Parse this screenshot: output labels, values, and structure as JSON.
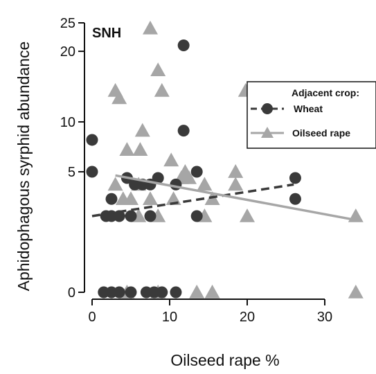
{
  "chart_data": {
    "type": "scatter",
    "panel_label": "SNH",
    "xlabel": "Oilseed rape %",
    "ylabel": "Aphidophagous syrphid abundance",
    "xlim": [
      -1,
      35
    ],
    "y_scale": "sqrt",
    "ylim": [
      0,
      25
    ],
    "x_ticks": [
      0,
      10,
      20,
      30
    ],
    "y_ticks": [
      0,
      5,
      10,
      20,
      25
    ],
    "x_tick_labels": [
      "0",
      "10",
      "20",
      "30"
    ],
    "y_tick_labels": [
      "0",
      "5",
      "10",
      "20",
      "25"
    ],
    "grid": false,
    "legend": {
      "title": "Adjacent crop:",
      "position": "top-right",
      "entries": [
        "Wheat",
        "Oilseed rape"
      ]
    },
    "series": [
      {
        "name": "Wheat",
        "marker": "circle",
        "color": "#3a3a3a",
        "points": [
          {
            "x": 0,
            "y": 8
          },
          {
            "x": 0,
            "y": 5
          },
          {
            "x": 2.5,
            "y": 3
          },
          {
            "x": 1.8,
            "y": 2
          },
          {
            "x": 2.5,
            "y": 2
          },
          {
            "x": 3.5,
            "y": 2
          },
          {
            "x": 5,
            "y": 2
          },
          {
            "x": 7.5,
            "y": 2
          },
          {
            "x": 13.5,
            "y": 2
          },
          {
            "x": 5.5,
            "y": 4
          },
          {
            "x": 6.5,
            "y": 4
          },
          {
            "x": 7.5,
            "y": 4
          },
          {
            "x": 10.8,
            "y": 4
          },
          {
            "x": 4.5,
            "y": 4.5
          },
          {
            "x": 8.5,
            "y": 4.5
          },
          {
            "x": 13.5,
            "y": 5
          },
          {
            "x": 11.8,
            "y": 9
          },
          {
            "x": 11.8,
            "y": 21
          },
          {
            "x": 26.2,
            "y": 4.5
          },
          {
            "x": 26.2,
            "y": 3
          },
          {
            "x": 1.5,
            "y": 0
          },
          {
            "x": 2.5,
            "y": 0
          },
          {
            "x": 3.5,
            "y": 0
          },
          {
            "x": 5,
            "y": 0
          },
          {
            "x": 7,
            "y": 0
          },
          {
            "x": 8,
            "y": 0
          },
          {
            "x": 9,
            "y": 0
          },
          {
            "x": 10.8,
            "y": 0
          }
        ],
        "trend": {
          "x": [
            0,
            26
          ],
          "y": [
            2,
            4
          ]
        }
      },
      {
        "name": "Oilseed rape",
        "marker": "triangle",
        "color": "#a6a6a6",
        "points": [
          {
            "x": 7.5,
            "y": 24
          },
          {
            "x": 8.5,
            "y": 17
          },
          {
            "x": 3,
            "y": 14
          },
          {
            "x": 3.5,
            "y": 13
          },
          {
            "x": 9,
            "y": 14
          },
          {
            "x": 19.8,
            "y": 14
          },
          {
            "x": 6.5,
            "y": 9
          },
          {
            "x": 4.5,
            "y": 7
          },
          {
            "x": 6.2,
            "y": 7
          },
          {
            "x": 10.2,
            "y": 6
          },
          {
            "x": 12,
            "y": 5
          },
          {
            "x": 18.5,
            "y": 5
          },
          {
            "x": 11.5,
            "y": 4.5
          },
          {
            "x": 12.5,
            "y": 4.5
          },
          {
            "x": 3,
            "y": 4
          },
          {
            "x": 6,
            "y": 4
          },
          {
            "x": 14.5,
            "y": 4
          },
          {
            "x": 18.5,
            "y": 4
          },
          {
            "x": 4,
            "y": 3
          },
          {
            "x": 5,
            "y": 3
          },
          {
            "x": 7.5,
            "y": 3
          },
          {
            "x": 10.5,
            "y": 3
          },
          {
            "x": 15.5,
            "y": 3
          },
          {
            "x": 6,
            "y": 2
          },
          {
            "x": 8.5,
            "y": 2
          },
          {
            "x": 14.5,
            "y": 2
          },
          {
            "x": 20,
            "y": 2
          },
          {
            "x": 34,
            "y": 2
          },
          {
            "x": 4.5,
            "y": 0
          },
          {
            "x": 8.5,
            "y": 0
          },
          {
            "x": 13.5,
            "y": 0
          },
          {
            "x": 15.5,
            "y": 0
          },
          {
            "x": 34,
            "y": 0
          }
        ],
        "trend": {
          "x": [
            3,
            34
          ],
          "y": [
            4.7,
            1.8
          ]
        }
      }
    ]
  }
}
